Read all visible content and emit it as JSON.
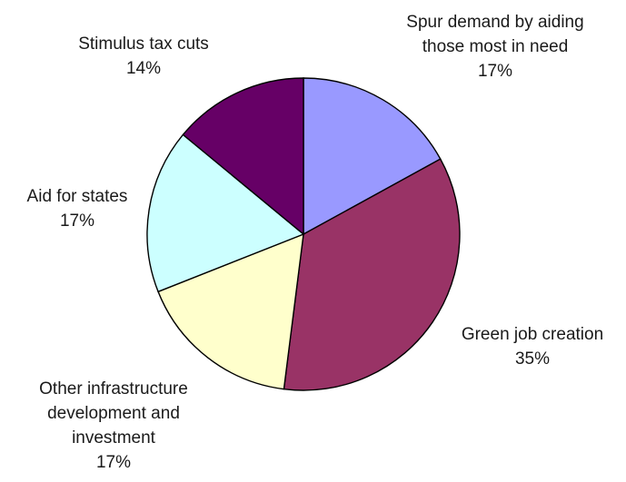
{
  "chart_data": {
    "type": "pie",
    "title": "",
    "slices": [
      {
        "label_lines": [
          "Spur demand by aiding",
          "those most in need"
        ],
        "value": 17,
        "pct_label": "17%",
        "color": "#9999ff"
      },
      {
        "label_lines": [
          "Green job creation"
        ],
        "value": 35,
        "pct_label": "35%",
        "color": "#993366"
      },
      {
        "label_lines": [
          "Other infrastructure",
          "development and",
          "investment"
        ],
        "value": 17,
        "pct_label": "17%",
        "color": "#ffffcc"
      },
      {
        "label_lines": [
          "Aid for states"
        ],
        "value": 17,
        "pct_label": "17%",
        "color": "#ccffff"
      },
      {
        "label_lines": [
          "Stimulus tax cuts"
        ],
        "value": 14,
        "pct_label": "14%",
        "color": "#660066"
      }
    ]
  }
}
